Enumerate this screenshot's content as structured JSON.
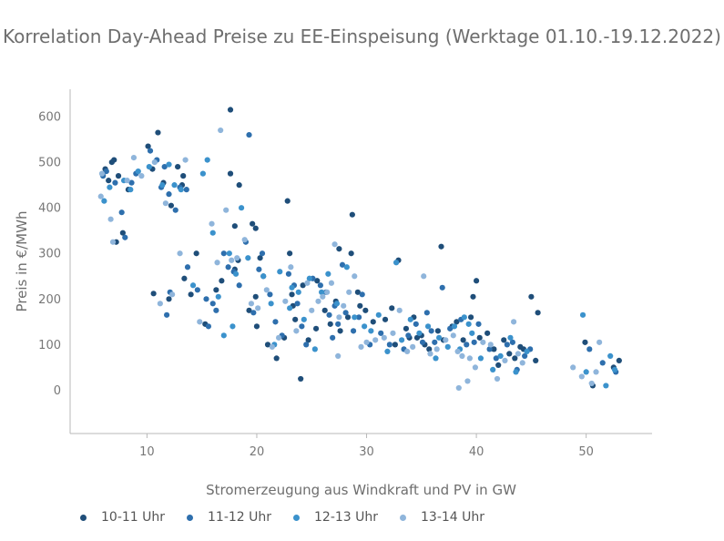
{
  "chart_data": {
    "type": "scatter",
    "title": "Korrelation Day-Ahead Preise zu EE-Einspeisung (Werktage 01.10.-19.12.2022)",
    "xlabel": "Stromerzeugung aus Windkraft und PV in GW",
    "ylabel": "Preis in €/MWh",
    "xlim": [
      3,
      56
    ],
    "ylim": [
      -95,
      660
    ],
    "xticks": [
      10,
      20,
      30,
      40,
      50
    ],
    "yticks": [
      0,
      100,
      200,
      300,
      400,
      500,
      600
    ],
    "grid": false,
    "legend_position": "bottom-left",
    "series": [
      {
        "name": "10-11 Uhr",
        "color": "#1f4e79",
        "points": [
          [
            6.2,
            485
          ],
          [
            6.8,
            500
          ],
          [
            7.0,
            505
          ],
          [
            7.4,
            470
          ],
          [
            6.5,
            460
          ],
          [
            8.3,
            440
          ],
          [
            7.8,
            345
          ],
          [
            7.2,
            325
          ],
          [
            10.1,
            535
          ],
          [
            10.5,
            485
          ],
          [
            11.0,
            565
          ],
          [
            11.5,
            455
          ],
          [
            12.2,
            405
          ],
          [
            12.8,
            490
          ],
          [
            13.3,
            470
          ],
          [
            13.2,
            450
          ],
          [
            10.6,
            212
          ],
          [
            12.0,
            200
          ],
          [
            13.4,
            245
          ],
          [
            14.0,
            210
          ],
          [
            14.5,
            300
          ],
          [
            15.3,
            145
          ],
          [
            16.3,
            220
          ],
          [
            16.8,
            240
          ],
          [
            17.6,
            615
          ],
          [
            17.6,
            475
          ],
          [
            18.4,
            450
          ],
          [
            18.0,
            360
          ],
          [
            18.3,
            285
          ],
          [
            18.0,
            265
          ],
          [
            19.6,
            365
          ],
          [
            19.9,
            355
          ],
          [
            20.3,
            290
          ],
          [
            20.6,
            250
          ],
          [
            19.3,
            175
          ],
          [
            19.9,
            205
          ],
          [
            20.0,
            140
          ],
          [
            21.8,
            70
          ],
          [
            22.5,
            115
          ],
          [
            22.8,
            415
          ],
          [
            23.0,
            300
          ],
          [
            23.2,
            210
          ],
          [
            23.3,
            185
          ],
          [
            23.5,
            155
          ],
          [
            24.2,
            230
          ],
          [
            24.7,
            110
          ],
          [
            25.4,
            135
          ],
          [
            25.5,
            240
          ],
          [
            26.2,
            175
          ],
          [
            26.7,
            145
          ],
          [
            27.2,
            195
          ],
          [
            27.5,
            310
          ],
          [
            27.6,
            130
          ],
          [
            28.3,
            160
          ],
          [
            28.6,
            300
          ],
          [
            28.7,
            385
          ],
          [
            29.2,
            215
          ],
          [
            29.4,
            185
          ],
          [
            29.9,
            175
          ],
          [
            30.6,
            150
          ],
          [
            31.7,
            155
          ],
          [
            32.3,
            180
          ],
          [
            32.6,
            100
          ],
          [
            32.9,
            285
          ],
          [
            33.6,
            135
          ],
          [
            33.9,
            115
          ],
          [
            34.3,
            160
          ],
          [
            34.6,
            115
          ],
          [
            35.0,
            120
          ],
          [
            35.3,
            100
          ],
          [
            35.7,
            90
          ],
          [
            36.5,
            130
          ],
          [
            36.8,
            315
          ],
          [
            37.0,
            110
          ],
          [
            37.8,
            140
          ],
          [
            38.2,
            150
          ],
          [
            38.8,
            110
          ],
          [
            39.5,
            160
          ],
          [
            39.7,
            205
          ],
          [
            40.0,
            240
          ],
          [
            40.3,
            115
          ],
          [
            41.0,
            125
          ],
          [
            41.6,
            90
          ],
          [
            42.0,
            55
          ],
          [
            42.5,
            110
          ],
          [
            43.0,
            80
          ],
          [
            43.5,
            70
          ],
          [
            44.0,
            95
          ],
          [
            44.3,
            90
          ],
          [
            45.0,
            205
          ],
          [
            45.4,
            65
          ],
          [
            45.6,
            170
          ],
          [
            49.9,
            105
          ],
          [
            50.6,
            10
          ],
          [
            52.5,
            50
          ],
          [
            53.0,
            65
          ],
          [
            24.0,
            25
          ],
          [
            21.0,
            100
          ]
        ]
      },
      {
        "name": "11-12 Uhr",
        "color": "#2e6fad",
        "points": [
          [
            6.0,
            470
          ],
          [
            6.3,
            480
          ],
          [
            7.1,
            455
          ],
          [
            7.7,
            390
          ],
          [
            8.0,
            335
          ],
          [
            8.6,
            455
          ],
          [
            9.0,
            475
          ],
          [
            10.3,
            525
          ],
          [
            10.9,
            505
          ],
          [
            11.6,
            490
          ],
          [
            11.3,
            445
          ],
          [
            12.0,
            430
          ],
          [
            12.6,
            395
          ],
          [
            13.0,
            445
          ],
          [
            13.6,
            440
          ],
          [
            11.8,
            165
          ],
          [
            12.1,
            215
          ],
          [
            13.7,
            270
          ],
          [
            14.6,
            220
          ],
          [
            15.4,
            200
          ],
          [
            16.0,
            190
          ],
          [
            16.3,
            175
          ],
          [
            17.0,
            300
          ],
          [
            17.4,
            270
          ],
          [
            17.9,
            260
          ],
          [
            18.4,
            230
          ],
          [
            19.0,
            325
          ],
          [
            19.3,
            560
          ],
          [
            19.7,
            170
          ],
          [
            20.2,
            265
          ],
          [
            20.5,
            300
          ],
          [
            21.2,
            210
          ],
          [
            21.7,
            150
          ],
          [
            22.3,
            120
          ],
          [
            22.9,
            255
          ],
          [
            23.4,
            230
          ],
          [
            23.7,
            190
          ],
          [
            24.1,
            140
          ],
          [
            24.5,
            100
          ],
          [
            25.1,
            245
          ],
          [
            25.8,
            230
          ],
          [
            26.3,
            215
          ],
          [
            26.6,
            165
          ],
          [
            27.1,
            185
          ],
          [
            27.4,
            145
          ],
          [
            27.8,
            275
          ],
          [
            28.1,
            170
          ],
          [
            28.8,
            130
          ],
          [
            29.3,
            160
          ],
          [
            29.6,
            210
          ],
          [
            30.3,
            100
          ],
          [
            31.3,
            125
          ],
          [
            32.1,
            100
          ],
          [
            33.4,
            90
          ],
          [
            33.8,
            120
          ],
          [
            34.5,
            145
          ],
          [
            35.1,
            105
          ],
          [
            35.5,
            170
          ],
          [
            35.9,
            130
          ],
          [
            36.2,
            105
          ],
          [
            36.9,
            225
          ],
          [
            37.6,
            135
          ],
          [
            38.6,
            155
          ],
          [
            39.1,
            100
          ],
          [
            39.8,
            105
          ],
          [
            40.2,
            145
          ],
          [
            41.2,
            90
          ],
          [
            41.8,
            70
          ],
          [
            42.8,
            100
          ],
          [
            43.3,
            105
          ],
          [
            43.7,
            45
          ],
          [
            44.4,
            75
          ],
          [
            44.9,
            90
          ],
          [
            50.3,
            90
          ],
          [
            51.5,
            60
          ],
          [
            52.7,
            40
          ],
          [
            15.6,
            140
          ],
          [
            26.9,
            115
          ]
        ]
      },
      {
        "name": "12-13 Uhr",
        "color": "#3b92cc",
        "points": [
          [
            6.1,
            415
          ],
          [
            6.6,
            445
          ],
          [
            7.9,
            460
          ],
          [
            8.5,
            440
          ],
          [
            9.2,
            480
          ],
          [
            10.2,
            490
          ],
          [
            11.4,
            450
          ],
          [
            12.0,
            495
          ],
          [
            12.5,
            450
          ],
          [
            13.1,
            440
          ],
          [
            14.2,
            230
          ],
          [
            15.1,
            475
          ],
          [
            15.5,
            505
          ],
          [
            16.0,
            345
          ],
          [
            16.5,
            205
          ],
          [
            17.0,
            120
          ],
          [
            17.5,
            300
          ],
          [
            17.8,
            140
          ],
          [
            18.1,
            255
          ],
          [
            18.6,
            400
          ],
          [
            19.2,
            290
          ],
          [
            20.6,
            250
          ],
          [
            21.3,
            190
          ],
          [
            21.6,
            100
          ],
          [
            22.1,
            260
          ],
          [
            23.0,
            180
          ],
          [
            23.8,
            215
          ],
          [
            24.3,
            155
          ],
          [
            24.8,
            245
          ],
          [
            25.3,
            90
          ],
          [
            25.9,
            215
          ],
          [
            26.5,
            255
          ],
          [
            27.3,
            190
          ],
          [
            28.2,
            270
          ],
          [
            28.9,
            160
          ],
          [
            29.8,
            140
          ],
          [
            30.4,
            130
          ],
          [
            31.1,
            165
          ],
          [
            31.9,
            85
          ],
          [
            32.7,
            280
          ],
          [
            33.2,
            110
          ],
          [
            34.0,
            155
          ],
          [
            34.8,
            125
          ],
          [
            35.6,
            140
          ],
          [
            36.3,
            70
          ],
          [
            36.6,
            115
          ],
          [
            37.4,
            95
          ],
          [
            38.0,
            140
          ],
          [
            38.5,
            90
          ],
          [
            38.9,
            160
          ],
          [
            39.3,
            145
          ],
          [
            39.6,
            125
          ],
          [
            40.4,
            70
          ],
          [
            41.5,
            45
          ],
          [
            42.2,
            75
          ],
          [
            43.1,
            115
          ],
          [
            43.6,
            40
          ],
          [
            44.6,
            85
          ],
          [
            49.7,
            165
          ],
          [
            50.0,
            40
          ],
          [
            51.8,
            10
          ],
          [
            52.2,
            75
          ],
          [
            52.6,
            45
          ],
          [
            23.2,
            225
          ]
        ]
      },
      {
        "name": "13-14 Uhr",
        "color": "#8fb5db",
        "points": [
          [
            5.8,
            425
          ],
          [
            5.9,
            475
          ],
          [
            6.7,
            375
          ],
          [
            6.9,
            325
          ],
          [
            8.2,
            460
          ],
          [
            8.8,
            510
          ],
          [
            9.5,
            470
          ],
          [
            10.7,
            500
          ],
          [
            11.2,
            190
          ],
          [
            11.7,
            410
          ],
          [
            12.3,
            210
          ],
          [
            13.0,
            300
          ],
          [
            13.5,
            505
          ],
          [
            14.8,
            150
          ],
          [
            15.9,
            365
          ],
          [
            16.4,
            280
          ],
          [
            16.7,
            570
          ],
          [
            17.2,
            395
          ],
          [
            17.7,
            285
          ],
          [
            18.2,
            290
          ],
          [
            18.9,
            330
          ],
          [
            19.5,
            190
          ],
          [
            20.1,
            180
          ],
          [
            20.9,
            220
          ],
          [
            21.4,
            95
          ],
          [
            22.0,
            115
          ],
          [
            22.6,
            195
          ],
          [
            23.1,
            270
          ],
          [
            23.6,
            130
          ],
          [
            24.6,
            235
          ],
          [
            25.0,
            175
          ],
          [
            25.6,
            195
          ],
          [
            26.0,
            205
          ],
          [
            26.4,
            215
          ],
          [
            26.8,
            235
          ],
          [
            27.1,
            320
          ],
          [
            27.5,
            160
          ],
          [
            27.9,
            185
          ],
          [
            28.4,
            215
          ],
          [
            28.9,
            250
          ],
          [
            29.5,
            95
          ],
          [
            30.0,
            105
          ],
          [
            30.8,
            110
          ],
          [
            31.6,
            115
          ],
          [
            32.4,
            125
          ],
          [
            33.0,
            175
          ],
          [
            33.7,
            85
          ],
          [
            34.2,
            95
          ],
          [
            35.2,
            250
          ],
          [
            35.8,
            80
          ],
          [
            36.4,
            90
          ],
          [
            37.2,
            110
          ],
          [
            37.9,
            120
          ],
          [
            38.3,
            85
          ],
          [
            38.7,
            75
          ],
          [
            39.2,
            20
          ],
          [
            39.4,
            70
          ],
          [
            39.9,
            50
          ],
          [
            40.6,
            105
          ],
          [
            41.3,
            100
          ],
          [
            41.9,
            25
          ],
          [
            42.6,
            65
          ],
          [
            43.4,
            150
          ],
          [
            43.8,
            80
          ],
          [
            44.2,
            60
          ],
          [
            48.8,
            50
          ],
          [
            49.6,
            30
          ],
          [
            50.5,
            15
          ],
          [
            50.9,
            40
          ],
          [
            51.2,
            105
          ],
          [
            27.4,
            75
          ],
          [
            38.4,
            5
          ]
        ]
      }
    ]
  }
}
